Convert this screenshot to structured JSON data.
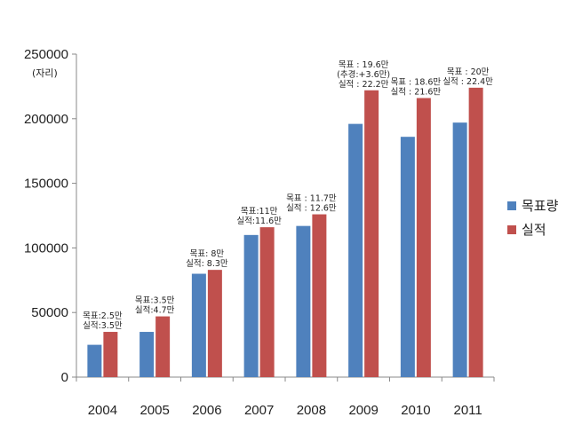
{
  "chart_data": {
    "type": "bar",
    "categories": [
      "2004",
      "2005",
      "2006",
      "2007",
      "2008",
      "2009",
      "2010",
      "2011"
    ],
    "series": [
      {
        "name": "목표량",
        "color": "#4F81BD",
        "values": [
          25000,
          35000,
          80000,
          110000,
          117000,
          196000,
          186000,
          197000
        ]
      },
      {
        "name": "실적",
        "color": "#C0504D",
        "values": [
          35000,
          47000,
          83000,
          116000,
          126000,
          222000,
          216000,
          224000
        ]
      }
    ],
    "ylim": [
      0,
      250000
    ],
    "yticks": [
      "0",
      "50000",
      "100000",
      "150000",
      "200000",
      "250000"
    ],
    "ylabel": "(자리)",
    "annotations": [
      [
        "목표:2.5만",
        "실적:3.5만"
      ],
      [
        "목표:3.5만",
        "실적:4.7만"
      ],
      [
        "목표: 8만",
        "실적: 8.3만"
      ],
      [
        "목표:11만",
        "실적:11.6만"
      ],
      [
        "목표 : 11.7만",
        "실적 : 12.6만"
      ],
      [
        "목표 : 19.6만",
        "(추경:+3.6만)",
        "실적 : 22.2만"
      ],
      [
        "목표 : 18.6만",
        "실적 : 21.6만"
      ],
      [
        "목표 : 20만",
        "실적 : 22.4만"
      ]
    ],
    "legend": "right",
    "grid": false
  }
}
